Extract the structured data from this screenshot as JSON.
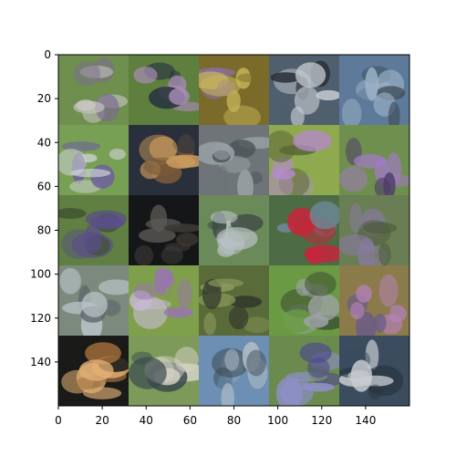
{
  "chart_data": {
    "type": "heatmap",
    "title": "",
    "xlabel": "",
    "ylabel": "",
    "xlim": [
      0,
      160
    ],
    "ylim": [
      160,
      0
    ],
    "grid": false,
    "xticks": [
      0,
      20,
      40,
      60,
      80,
      100,
      120,
      140
    ],
    "yticks": [
      0,
      20,
      40,
      60,
      80,
      100,
      120,
      140
    ],
    "xtick_labels": [
      "0",
      "20",
      "40",
      "60",
      "80",
      "100",
      "120",
      "140"
    ],
    "ytick_labels": [
      "0",
      "20",
      "40",
      "60",
      "80",
      "100",
      "120",
      "140"
    ],
    "grid_layout": {
      "rows": 5,
      "cols": 5,
      "tile_size": 32
    },
    "tiles": [
      {
        "row": 0,
        "col": 0,
        "bg": "#6f8f4e",
        "mid": "#c9c6c4",
        "acc": "#7b6a92"
      },
      {
        "row": 0,
        "col": 1,
        "bg": "#5e7f3e",
        "mid": "#a78bb6",
        "acc": "#2a3440"
      },
      {
        "row": 0,
        "col": 2,
        "bg": "#7a6b2a",
        "mid": "#c8b55a",
        "acc": "#8c6fa6"
      },
      {
        "row": 0,
        "col": 3,
        "bg": "#4f5f6e",
        "mid": "#c6ccd2",
        "acc": "#2b3038"
      },
      {
        "row": 0,
        "col": 4,
        "bg": "#5e7a9a",
        "mid": "#9fb6c9",
        "acc": "#3e4b57"
      },
      {
        "row": 1,
        "col": 0,
        "bg": "#78a055",
        "mid": "#cfd4d8",
        "acc": "#6e5f9c"
      },
      {
        "row": 1,
        "col": 1,
        "bg": "#2a2f3c",
        "mid": "#c99a5c",
        "acc": "#7a5a3a"
      },
      {
        "row": 1,
        "col": 2,
        "bg": "#6e7477",
        "mid": "#9aa2a6",
        "acc": "#4a5256"
      },
      {
        "row": 1,
        "col": 3,
        "bg": "#8fa94f",
        "mid": "#b48bc9",
        "acc": "#5d6a3a"
      },
      {
        "row": 1,
        "col": 4,
        "bg": "#6f8f4e",
        "mid": "#a07ac2",
        "acc": "#4e3e6a"
      },
      {
        "row": 2,
        "col": 0,
        "bg": "#5f8042",
        "mid": "#5a4d8a",
        "acc": "#3a4a2e"
      },
      {
        "row": 2,
        "col": 1,
        "bg": "#141618",
        "mid": "#3d3a35",
        "acc": "#5c5a55"
      },
      {
        "row": 2,
        "col": 2,
        "bg": "#6a8a5a",
        "mid": "#b7c0c4",
        "acc": "#3f4c46"
      },
      {
        "row": 2,
        "col": 3,
        "bg": "#4d6b44",
        "mid": "#c8243a",
        "acc": "#6d8a9a"
      },
      {
        "row": 2,
        "col": 4,
        "bg": "#6a7e56",
        "mid": "#8b7aa8",
        "acc": "#4b5a3a"
      },
      {
        "row": 3,
        "col": 0,
        "bg": "#7c8a7e",
        "mid": "#b9c4c8",
        "acc": "#596268"
      },
      {
        "row": 3,
        "col": 1,
        "bg": "#7fa04a",
        "mid": "#9a72b6",
        "acc": "#c7b9d4"
      },
      {
        "row": 3,
        "col": 2,
        "bg": "#5a6b3a",
        "mid": "#8a9a5c",
        "acc": "#333a2c"
      },
      {
        "row": 3,
        "col": 3,
        "bg": "#6a9a44",
        "mid": "#9ca2a4",
        "acc": "#3a4a30"
      },
      {
        "row": 3,
        "col": 4,
        "bg": "#8b7a4a",
        "mid": "#b983c4",
        "acc": "#6a5a8a"
      },
      {
        "row": 4,
        "col": 0,
        "bg": "#1a1a18",
        "mid": "#e0b074",
        "acc": "#9c6a3a"
      },
      {
        "row": 4,
        "col": 1,
        "bg": "#7e9a5a",
        "mid": "#d4d2c6",
        "acc": "#3a4a4e"
      },
      {
        "row": 4,
        "col": 2,
        "bg": "#6e8fb4",
        "mid": "#aebcc6",
        "acc": "#3a4850"
      },
      {
        "row": 4,
        "col": 3,
        "bg": "#6a8a4e",
        "mid": "#8d8fc8",
        "acc": "#4e4a8a"
      },
      {
        "row": 4,
        "col": 4,
        "bg": "#3a4c5e",
        "mid": "#c8ccd0",
        "acc": "#2a3440"
      }
    ]
  }
}
